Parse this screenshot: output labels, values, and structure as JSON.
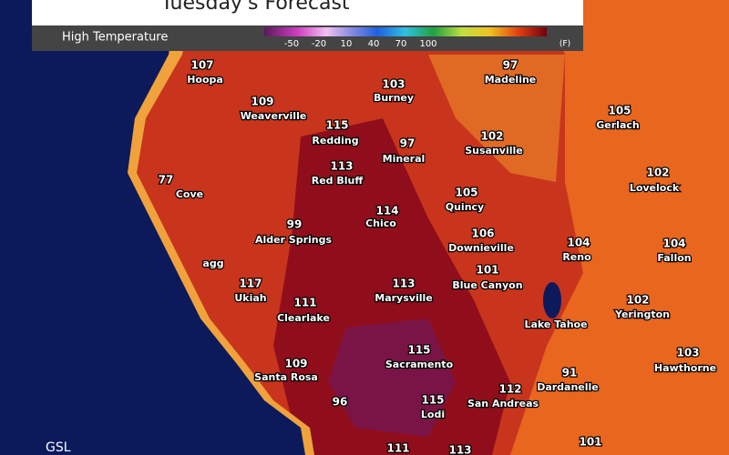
{
  "header": {
    "title": "Tuesday's Forecast",
    "legend_label": "High Temperature",
    "scale_ticks": [
      -50,
      -20,
      10,
      40,
      70,
      100
    ],
    "unit": "(F)"
  },
  "cities": [
    {
      "temp": 107,
      "name": "Hoopa"
    },
    {
      "temp": 109,
      "name": "Weaverville"
    },
    {
      "temp": 115,
      "name": "Redding"
    },
    {
      "temp": 103,
      "name": "Burney"
    },
    {
      "temp": 97,
      "name": "Madeline"
    },
    {
      "temp": 102,
      "name": "Susanville"
    },
    {
      "temp": 105,
      "name": "Gerlach"
    },
    {
      "temp": 97,
      "name": "Mineral"
    },
    {
      "temp": 113,
      "name": "Red Bluff"
    },
    {
      "temp": 102,
      "name": "Lovelock"
    },
    {
      "temp": 77,
      "name": "Cove"
    },
    {
      "temp": 105,
      "name": "Quincy"
    },
    {
      "temp": 114,
      "name": "Chico"
    },
    {
      "temp": 99,
      "name": "Alder Springs"
    },
    {
      "temp": 106,
      "name": "Downieville"
    },
    {
      "temp": 104,
      "name": "Reno"
    },
    {
      "temp": 104,
      "name": "Fallon"
    },
    {
      "name": "agg"
    },
    {
      "temp": 117,
      "name": "Ukiah"
    },
    {
      "temp": 101,
      "name": "Blue Canyon"
    },
    {
      "temp": 113,
      "name": "Marysville"
    },
    {
      "temp": 111,
      "name": "Clearlake"
    },
    {
      "temp": 102,
      "name": "Yerington"
    },
    {
      "name": "Lake Tahoe"
    },
    {
      "temp": 115,
      "name": "Sacramento"
    },
    {
      "temp": 109,
      "name": "Santa Rosa"
    },
    {
      "temp": 103,
      "name": "Hawthorne"
    },
    {
      "temp": 91,
      "name": "Dardanelle"
    },
    {
      "temp": 112,
      "name": "San Andreas"
    },
    {
      "temp": 96
    },
    {
      "temp": 115,
      "name": "Lodi"
    },
    {
      "temp": 111
    },
    {
      "temp": 113
    },
    {
      "temp": 101
    }
  ],
  "footer": {
    "credit": "GSL"
  }
}
